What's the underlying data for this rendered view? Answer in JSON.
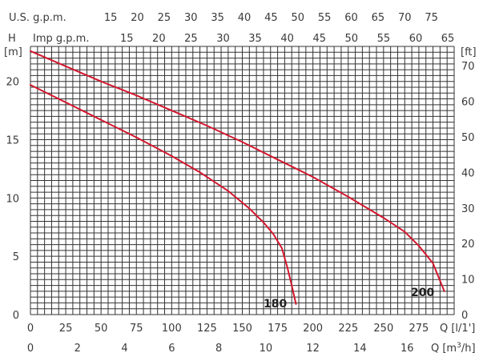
{
  "chart_data": {
    "type": "line",
    "title": "",
    "colors": {
      "curve": "#d3172e",
      "grid": "#333333",
      "text": "#3a3a3a"
    },
    "axes": {
      "left": {
        "title": "H",
        "unit": "[m]",
        "ticks": [
          0,
          5,
          10,
          15,
          20
        ],
        "range": [
          0,
          23
        ]
      },
      "right": {
        "unit": "[ft]",
        "ticks": [
          0,
          10,
          20,
          30,
          40,
          50,
          60,
          70
        ]
      },
      "bottom_lpm": {
        "label": "Q [l/1']",
        "ticks": [
          0,
          25,
          50,
          75,
          100,
          125,
          150,
          175,
          200,
          225,
          250,
          275
        ],
        "range": [
          0,
          300
        ]
      },
      "bottom_m3h": {
        "label": "Q [m³/h]",
        "ticks": [
          0,
          2,
          4,
          6,
          8,
          10,
          12,
          14,
          16
        ]
      },
      "top_usgpm": {
        "label": "U.S. g.p.m.",
        "ticks": [
          15,
          20,
          25,
          30,
          35,
          40,
          45,
          50,
          55,
          60,
          65,
          70,
          75
        ]
      },
      "top_impgpm": {
        "label": "Imp g.p.m.",
        "ticks": [
          15,
          20,
          25,
          30,
          35,
          40,
          45,
          50,
          55,
          60,
          65
        ]
      }
    },
    "grid": true,
    "series": [
      {
        "name": "180",
        "x": [
          0,
          25,
          50,
          75,
          100,
          120,
          140,
          155,
          165,
          172,
          178,
          182,
          185,
          188
        ],
        "y": [
          19.7,
          18.2,
          16.7,
          15.2,
          13.6,
          12.2,
          10.6,
          9.1,
          7.9,
          6.9,
          5.7,
          4.0,
          2.5,
          0.9
        ]
      },
      {
        "name": "200",
        "x": [
          0,
          25,
          50,
          75,
          100,
          125,
          150,
          175,
          200,
          225,
          250,
          265,
          275,
          285,
          293
        ],
        "y": [
          22.6,
          21.3,
          20.0,
          18.8,
          17.5,
          16.2,
          14.8,
          13.3,
          11.8,
          10.1,
          8.3,
          7.1,
          5.9,
          4.4,
          2.0
        ]
      }
    ]
  }
}
